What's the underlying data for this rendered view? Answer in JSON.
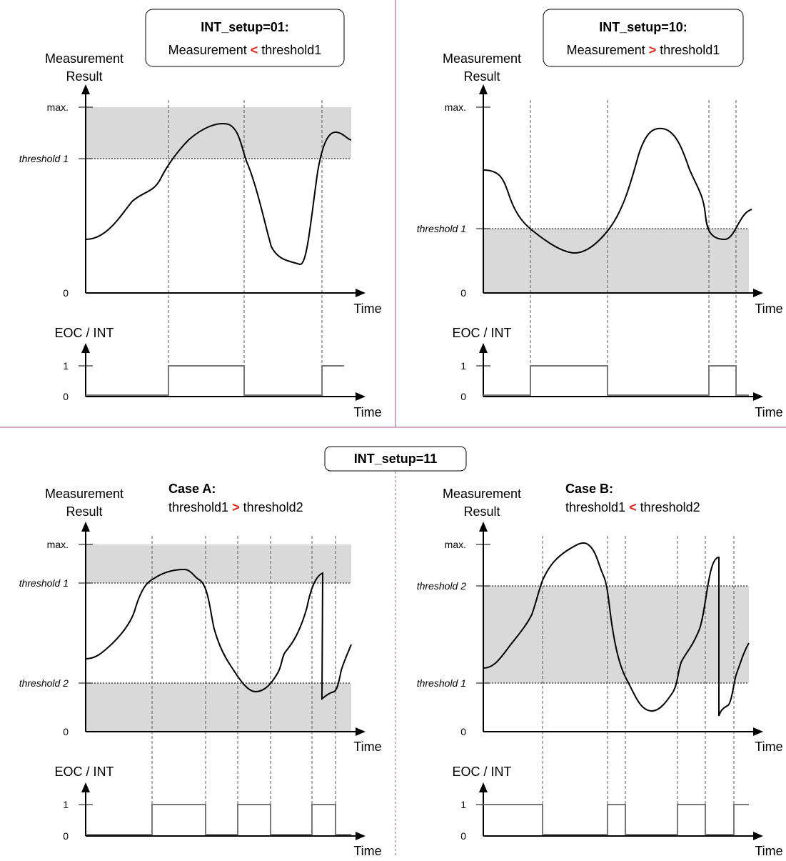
{
  "header_top_left": {
    "line1": "INT_setup=01:",
    "pre": "Measurement ",
    "op": "<",
    "post": " threshold1"
  },
  "header_top_right": {
    "line1": "INT_setup=10:",
    "pre": "Measurement ",
    "op": ">",
    "post": " threshold1"
  },
  "header_bottom": {
    "label": "INT_setup=11"
  },
  "case_a": {
    "title": "Case A:",
    "pre": "threshold1 ",
    "op": ">",
    "post": " threshold2"
  },
  "case_b": {
    "title": "Case B:",
    "pre": "threshold1 ",
    "op": "<",
    "post": " threshold2"
  },
  "labels": {
    "y_main_1": "Measurement",
    "y_main_2": "Result",
    "y_sig": "EOC / INT",
    "time": "Time",
    "max": "max.",
    "zero": "0",
    "one": "1",
    "threshold1": "threshold 1",
    "threshold2": "threshold 2"
  },
  "colors": {
    "operator_red": "#e2231a",
    "band_gray": "#d9d9d9",
    "separator": "#a0509a",
    "signal_gray": "#777777"
  }
}
